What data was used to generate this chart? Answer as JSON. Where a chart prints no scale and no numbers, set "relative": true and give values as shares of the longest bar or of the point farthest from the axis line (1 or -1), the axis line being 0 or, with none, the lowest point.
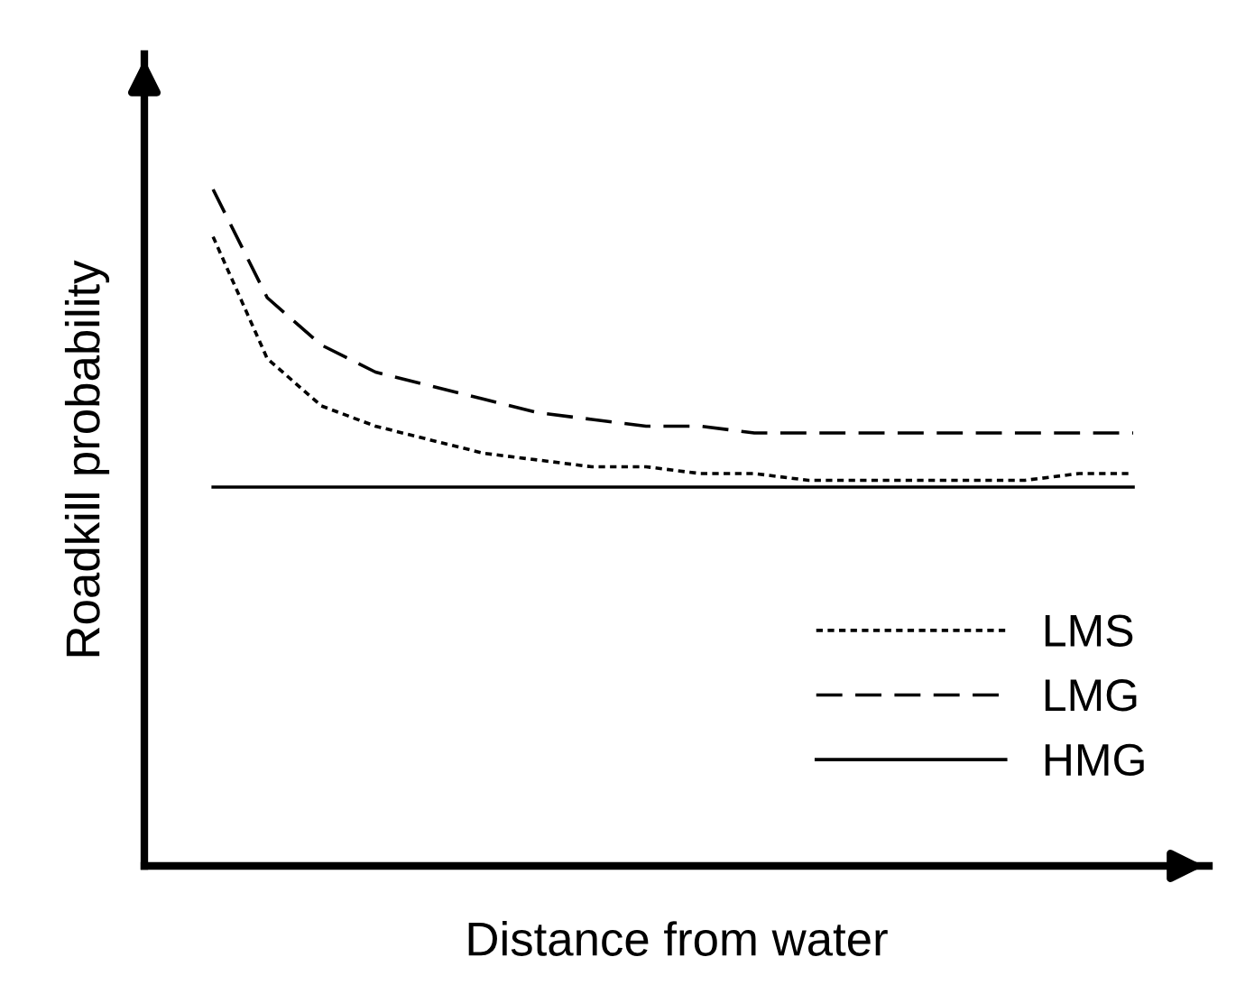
{
  "chart_data": {
    "type": "line",
    "relative": true,
    "xlabel": "Distance from water",
    "ylabel": "Roadkill probability",
    "categories": [
      null,
      null,
      null,
      null,
      null,
      null,
      null,
      null,
      null,
      null,
      null,
      null,
      null,
      null,
      null,
      null,
      null,
      null
    ],
    "series": [
      {
        "name": "LMS",
        "color": "#000000",
        "line_style": "dotted",
        "values": [
          0.93,
          0.75,
          0.68,
          0.65,
          0.63,
          0.61,
          0.6,
          0.59,
          0.59,
          0.58,
          0.58,
          0.57,
          0.57,
          0.57,
          0.57,
          0.57,
          0.58,
          0.58
        ]
      },
      {
        "name": "LMG",
        "color": "#000000",
        "line_style": "dashed",
        "values": [
          1.0,
          0.84,
          0.77,
          0.73,
          0.71,
          0.69,
          0.67,
          0.66,
          0.65,
          0.65,
          0.64,
          0.64,
          0.64,
          0.64,
          0.64,
          0.64,
          0.64,
          0.64
        ]
      },
      {
        "name": "HMG",
        "color": "#000000",
        "line_style": "solid",
        "values": [
          0.56,
          0.56,
          0.56,
          0.56,
          0.56,
          0.56,
          0.56,
          0.56,
          0.56,
          0.56,
          0.56,
          0.56,
          0.56,
          0.56,
          0.56,
          0.56,
          0.56,
          0.56
        ]
      }
    ],
    "legend": "bottom right",
    "marker": "none"
  }
}
